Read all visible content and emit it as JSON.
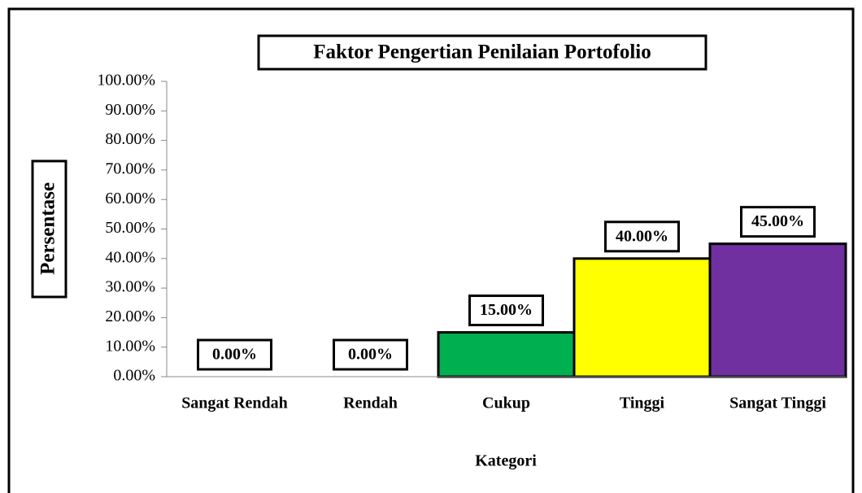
{
  "chart_data": {
    "type": "bar",
    "title": "Faktor Pengertian Penilaian Portofolio",
    "x_label": "Kategori",
    "y_label": "Persentase",
    "categories": [
      "Sangat Rendah",
      "Rendah",
      "Cukup",
      "Tinggi",
      "Sangat Tinggi"
    ],
    "values": [
      0,
      0,
      15,
      40,
      45
    ],
    "value_labels": [
      "0.00%",
      "0.00%",
      "15.00%",
      "40.00%",
      "45.00%"
    ],
    "colors": [
      null,
      null,
      "#00b050",
      "#ffff00",
      "#7030a0"
    ],
    "ylim": [
      0,
      100
    ],
    "yticks": [
      {
        "value": 0,
        "label": "0.00%"
      },
      {
        "value": 10,
        "label": "10.00%"
      },
      {
        "value": 20,
        "label": "20.00%"
      },
      {
        "value": 30,
        "label": "30.00%"
      },
      {
        "value": 40,
        "label": "40.00%"
      },
      {
        "value": 50,
        "label": "50.00%"
      },
      {
        "value": 60,
        "label": "60.00%"
      },
      {
        "value": 70,
        "label": "70.00%"
      },
      {
        "value": 80,
        "label": "80.00%"
      },
      {
        "value": 90,
        "label": "90.00%"
      },
      {
        "value": 100,
        "label": "100.00%"
      }
    ],
    "grid": false
  }
}
